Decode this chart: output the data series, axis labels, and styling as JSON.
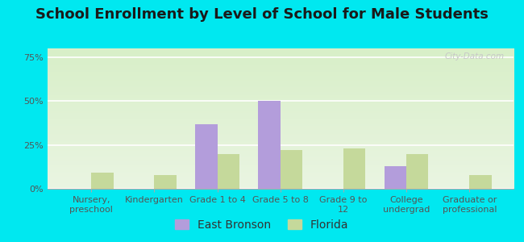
{
  "title": "School Enrollment by Level of School for Male Students",
  "categories": [
    "Nursery,\npreschool",
    "Kindergarten",
    "Grade 1 to 4",
    "Grade 5 to 8",
    "Grade 9 to\n12",
    "College\nundergrad",
    "Graduate or\nprofessional"
  ],
  "east_bronson": [
    0.0,
    0.0,
    37.0,
    50.0,
    0.0,
    13.0,
    0.0
  ],
  "florida": [
    9.0,
    8.0,
    20.0,
    22.0,
    23.0,
    20.0,
    8.0
  ],
  "bar_color_eb": "#b39ddb",
  "bar_color_fl": "#c5d99b",
  "background_outer": "#00e8f0",
  "background_inner_grad_top": "#eaf5e2",
  "background_inner_grad_bottom": "#d8efc8",
  "ylabel_ticks": [
    "0%",
    "25%",
    "50%",
    "75%"
  ],
  "ytick_vals": [
    0,
    25,
    50,
    75
  ],
  "ylim": [
    0,
    80
  ],
  "legend_eb": "East Bronson",
  "legend_fl": "Florida",
  "title_fontsize": 13,
  "tick_fontsize": 8,
  "legend_fontsize": 10,
  "watermark": "City-Data.com"
}
